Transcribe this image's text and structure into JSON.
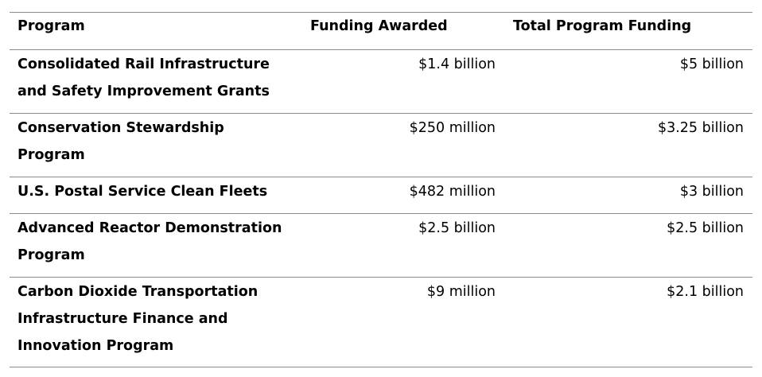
{
  "table": {
    "headers": [
      "Program",
      "Funding Awarded",
      "Total Program Funding"
    ],
    "rows": [
      {
        "program_lines": [
          "Consolidated Rail Infrastructure",
          "and Safety Improvement Grants"
        ],
        "awarded": "$1.4 billion",
        "total": "$5 billion"
      },
      {
        "program_lines": [
          "Conservation Stewardship",
          "Program"
        ],
        "awarded": "$250 million",
        "total": "$3.25 billion"
      },
      {
        "program_lines": [
          "U.S. Postal Service Clean Fleets"
        ],
        "awarded": "$482 million",
        "total": "$3 billion"
      },
      {
        "program_lines": [
          "Advanced Reactor Demonstration",
          "Program"
        ],
        "awarded": "$2.5 billion",
        "total": "$2.5 billion"
      },
      {
        "program_lines": [
          "Carbon Dioxide Transportation",
          "Infrastructure Finance and",
          "Innovation Program"
        ],
        "awarded": "$9 million",
        "total": "$2.1 billion"
      }
    ]
  }
}
